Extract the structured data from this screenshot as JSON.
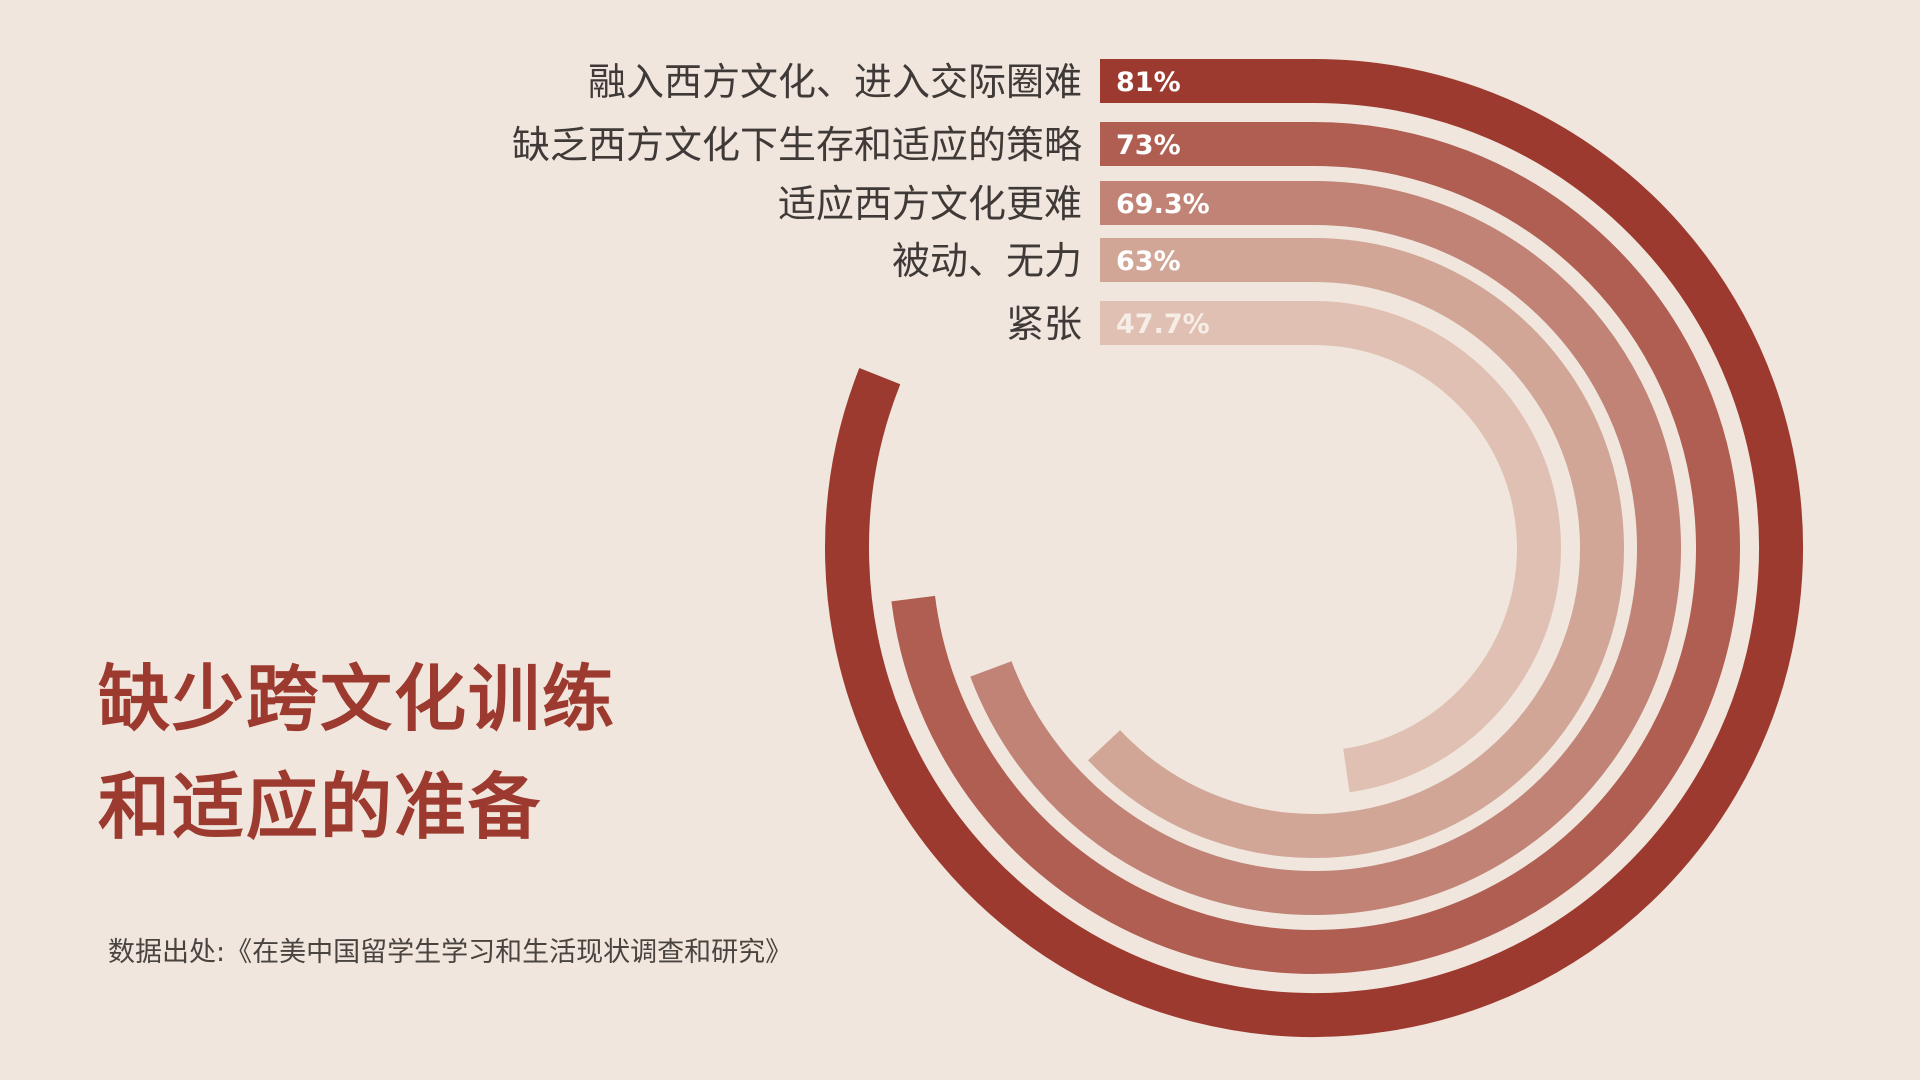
{
  "headline": {
    "line1": "缺少跨文化训练",
    "line2": "和适应的准备"
  },
  "source": "数据出处:《在美中国留学生学习和生活现状调查和研究》",
  "chart_data": {
    "type": "radial-bar",
    "categories": [
      "融入西方文化、进入交际圈难",
      "缺乏西方文化下生存和适应的策略",
      "适应西方文化更难",
      "被动、无力",
      "紧张"
    ],
    "values": [
      81,
      73,
      69.3,
      63,
      47.7
    ],
    "value_labels": [
      "81%",
      "73%",
      "69.3%",
      "63%",
      "47.7%"
    ],
    "colors": [
      "#9D3A2F",
      "#AF5E51",
      "#C08376",
      "#D2A697",
      "#DFC0B2"
    ],
    "label_colors": [
      "#FFFFFF",
      "#FFFFFF",
      "#FFFFFF",
      "#FFFFFF",
      "#F7EDE7"
    ]
  }
}
